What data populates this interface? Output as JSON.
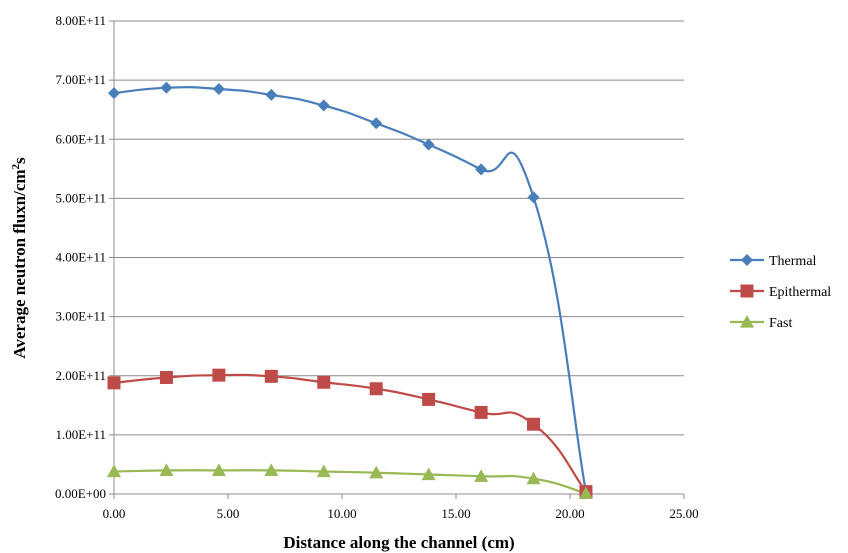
{
  "chart_data": {
    "type": "line",
    "title": "",
    "xlabel": "Distance along the channel (cm)",
    "ylabel_main": "Average neutron fluxn/cm",
    "ylabel_sup": "2",
    "ylabel_tail": "s",
    "xlim": [
      0,
      25
    ],
    "ylim": [
      0,
      800000000000
    ],
    "x_ticks": [
      0,
      5,
      10,
      15,
      20,
      25
    ],
    "x_tick_labels": [
      "0.00",
      "5.00",
      "10.00",
      "15.00",
      "20.00",
      "25.00"
    ],
    "y_ticks": [
      0,
      100000000000,
      200000000000,
      300000000000,
      400000000000,
      500000000000,
      600000000000,
      700000000000,
      800000000000
    ],
    "y_tick_labels": [
      "0.00E+00",
      "1.00E+11",
      "2.00E+11",
      "3.00E+11",
      "4.00E+11",
      "5.00E+11",
      "6.00E+11",
      "7.00E+11",
      "8.00E+11"
    ],
    "grid": "horizontal",
    "legend_position": "right",
    "x": [
      0.0,
      2.3,
      4.6,
      6.9,
      9.2,
      11.5,
      13.8,
      16.1,
      18.4,
      20.7
    ],
    "series": [
      {
        "name": "Thermal",
        "color": "#4a7ebb",
        "marker": "diamond",
        "values": [
          678000000000,
          687000000000,
          685000000000,
          675000000000,
          657000000000,
          627000000000,
          591000000000,
          549000000000,
          502000000000,
          3000000000
        ]
      },
      {
        "name": "Epithermal",
        "color": "#be4b48",
        "marker": "square",
        "values": [
          188000000000,
          197000000000,
          201000000000,
          199000000000,
          189000000000,
          178000000000,
          160000000000,
          138000000000,
          118000000000,
          4000000000
        ]
      },
      {
        "name": "Fast",
        "color": "#98b954",
        "marker": "triangle",
        "values": [
          38000000000,
          40000000000,
          40000000000,
          40000000000,
          38000000000,
          36000000000,
          33000000000,
          30000000000,
          26000000000,
          1000000000
        ]
      }
    ]
  }
}
